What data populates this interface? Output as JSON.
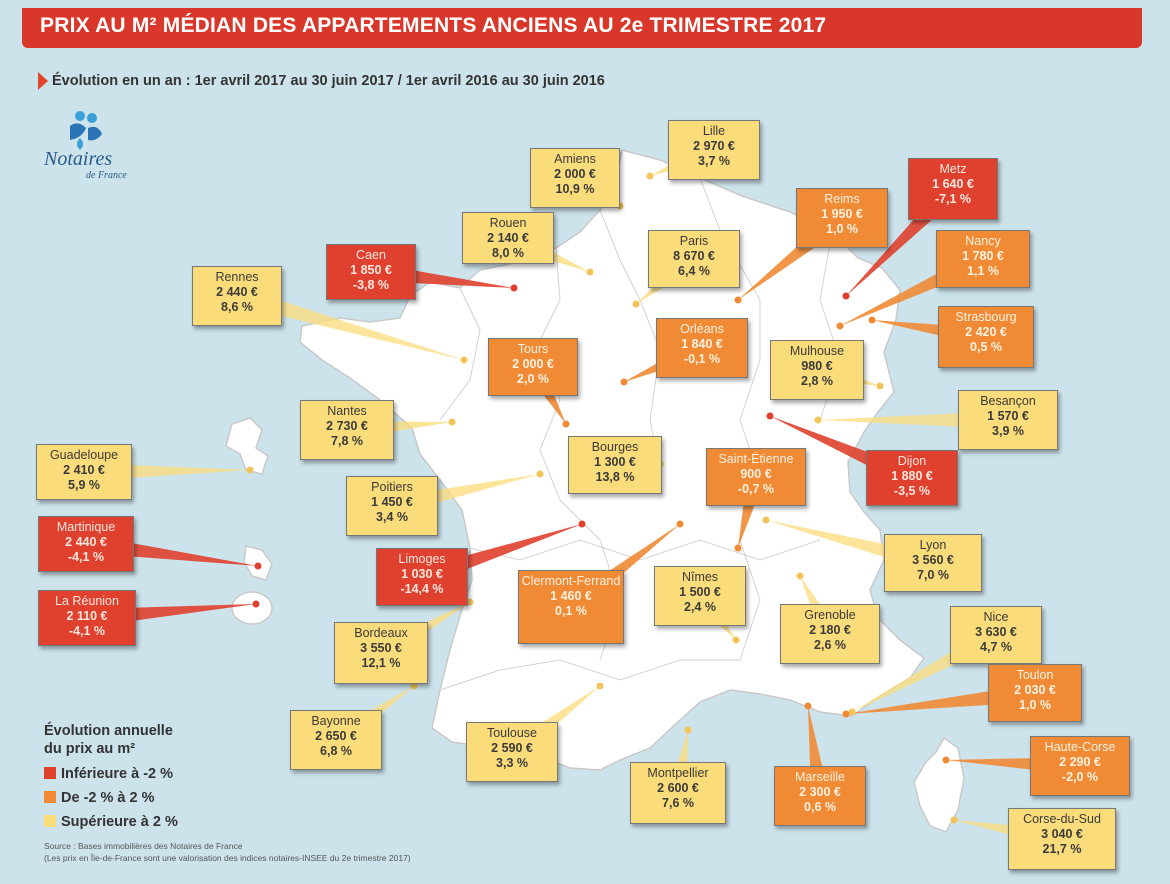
{
  "title": "PRIX AU M² MÉDIAN DES APPARTEMENTS ANCIENS AU 2e TRIMESTRE 2017",
  "subtitle": "Évolution en un an : 1er avril 2017 au 30 juin 2017 / 1er avril 2016 au 30 juin 2016",
  "logo": {
    "name": "Notaires",
    "sub": "de France",
    "icon": "notaires-logo-icon"
  },
  "colors": {
    "red": "#e0402e",
    "orange": "#f08a35",
    "yellow": "#fbdc7a",
    "title_bg": "#d8372a"
  },
  "legend": {
    "title_line1": "Évolution annuelle",
    "title_line2": "du prix au m²",
    "items": [
      {
        "label": "Inférieure à -2 %",
        "category": "red"
      },
      {
        "label": "De -2 % à 2 %",
        "category": "orange"
      },
      {
        "label": "Supérieure à 2 %",
        "category": "yellow"
      }
    ]
  },
  "source_line1": "Source : Bases immobilières des Notaires de France",
  "source_line2": "(Les prix en Île-de-France sont une valorisation des indices notaires-INSEE du 2e trimestre 2017)",
  "cities": [
    {
      "name": "Lille",
      "price": "2 970 €",
      "change": "3,7 %",
      "category": "yellow"
    },
    {
      "name": "Amiens",
      "price": "2 000 €",
      "change": "10,9 %",
      "category": "yellow"
    },
    {
      "name": "Metz",
      "price": "1 640 €",
      "change": "-7,1 %",
      "category": "red"
    },
    {
      "name": "Reims",
      "price": "1 950 €",
      "change": "1,0 %",
      "category": "orange"
    },
    {
      "name": "Rouen",
      "price": "2 140 €",
      "change": "8,0 %",
      "category": "yellow"
    },
    {
      "name": "Caen",
      "price": "1 850 €",
      "change": "-3,8 %",
      "category": "red"
    },
    {
      "name": "Paris",
      "price": "8 670 €",
      "change": "6,4 %",
      "category": "yellow"
    },
    {
      "name": "Nancy",
      "price": "1 780 €",
      "change": "1,1 %",
      "category": "orange"
    },
    {
      "name": "Rennes",
      "price": "2 440 €",
      "change": "8,6 %",
      "category": "yellow"
    },
    {
      "name": "Strasbourg",
      "price": "2 420 €",
      "change": "0,5 %",
      "category": "orange"
    },
    {
      "name": "Tours",
      "price": "2 000 €",
      "change": "2,0 %",
      "category": "orange"
    },
    {
      "name": "Orléans",
      "price": "1 840 €",
      "change": "-0,1 %",
      "category": "orange"
    },
    {
      "name": "Mulhouse",
      "price": "980 €",
      "change": "2,8 %",
      "category": "yellow"
    },
    {
      "name": "Besançon",
      "price": "1 570 €",
      "change": "3,9 %",
      "category": "yellow"
    },
    {
      "name": "Nantes",
      "price": "2 730 €",
      "change": "7,8 %",
      "category": "yellow"
    },
    {
      "name": "Bourges",
      "price": "1 300 €",
      "change": "13,8 %",
      "category": "yellow"
    },
    {
      "name": "Dijon",
      "price": "1 880 €",
      "change": "-3,5 %",
      "category": "red"
    },
    {
      "name": "Saint-Étienne",
      "price": "900 €",
      "change": "-0,7 %",
      "category": "orange"
    },
    {
      "name": "Guadeloupe",
      "price": "2 410 €",
      "change": "5,9 %",
      "category": "yellow"
    },
    {
      "name": "Poitiers",
      "price": "1 450 €",
      "change": "3,4 %",
      "category": "yellow"
    },
    {
      "name": "Martinique",
      "price": "2 440 €",
      "change": "-4,1 %",
      "category": "red"
    },
    {
      "name": "Lyon",
      "price": "3 560 €",
      "change": "7,0 %",
      "category": "yellow"
    },
    {
      "name": "Limoges",
      "price": "1 030 €",
      "change": "-14,4 %",
      "category": "red"
    },
    {
      "name": "Clermont-Ferrand",
      "price": "1 460 €",
      "change": "0,1 %",
      "category": "orange"
    },
    {
      "name": "Nîmes",
      "price": "1 500 €",
      "change": "2,4 %",
      "category": "yellow"
    },
    {
      "name": "La Réunion",
      "price": "2 110 €",
      "change": "-4,1 %",
      "category": "red"
    },
    {
      "name": "Grenoble",
      "price": "2 180 €",
      "change": "2,6 %",
      "category": "yellow"
    },
    {
      "name": "Nice",
      "price": "3 630 €",
      "change": "4,7 %",
      "category": "yellow"
    },
    {
      "name": "Bordeaux",
      "price": "3 550 €",
      "change": "12,1 %",
      "category": "yellow"
    },
    {
      "name": "Toulon",
      "price": "2 030 €",
      "change": "1,0 %",
      "category": "orange"
    },
    {
      "name": "Bayonne",
      "price": "2 650 €",
      "change": "6,8 %",
      "category": "yellow"
    },
    {
      "name": "Toulouse",
      "price": "2 590 €",
      "change": "3,3 %",
      "category": "yellow"
    },
    {
      "name": "Haute-Corse",
      "price": "2 290 €",
      "change": "-2,0 %",
      "category": "orange"
    },
    {
      "name": "Montpellier",
      "price": "2 600 €",
      "change": "7,6 %",
      "category": "yellow"
    },
    {
      "name": "Marseille",
      "price": "2 300 €",
      "change": "0,6 %",
      "category": "orange"
    },
    {
      "name": "Corse-du-Sud",
      "price": "3 040 €",
      "change": "21,7 %",
      "category": "yellow"
    }
  ]
}
